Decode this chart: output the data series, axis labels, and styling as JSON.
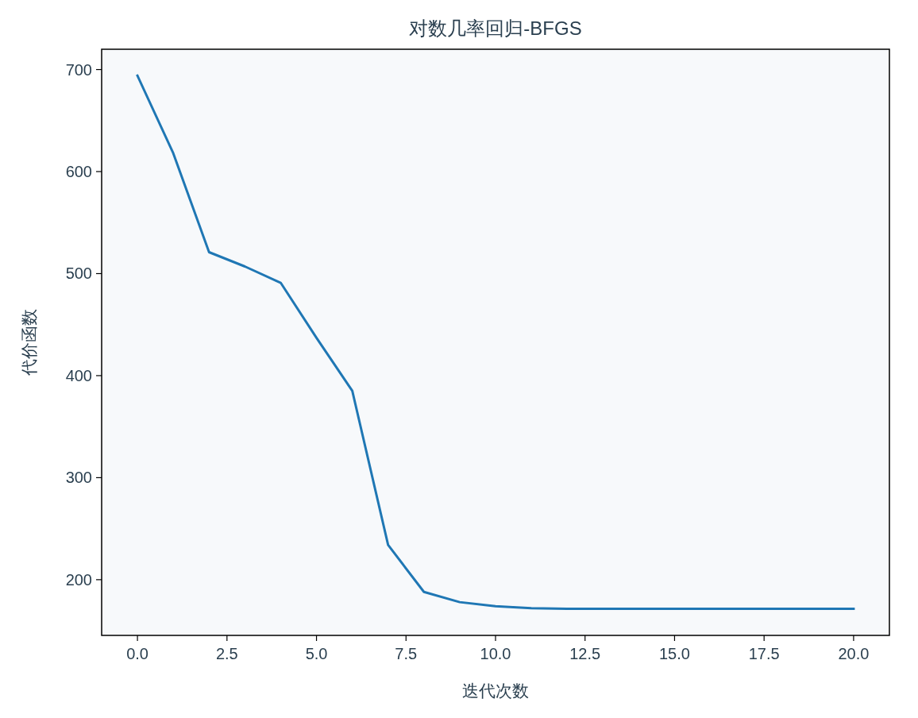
{
  "chart_data": {
    "type": "line",
    "title": "对数几率回归-BFGS",
    "xlabel": "迭代次数",
    "ylabel": "代价函数",
    "x": [
      0,
      1,
      2,
      3,
      4,
      5,
      6,
      7,
      8,
      9,
      10,
      11,
      12,
      13,
      14,
      15,
      16,
      17,
      18,
      19,
      20
    ],
    "series": [
      {
        "color": "#1f77b4",
        "values": [
          694,
          618,
          521,
          507,
          491,
          437,
          385,
          234,
          188,
          178,
          174,
          172,
          171.5,
          171.5,
          171.5,
          171.5,
          171.5,
          171.5,
          171.5,
          171.5,
          171.5
        ]
      }
    ],
    "xlim": [
      -1,
      21
    ],
    "ylim": [
      145.4,
      719.9
    ],
    "xticks": [
      {
        "value": 0,
        "label": "0.0"
      },
      {
        "value": 2.5,
        "label": "2.5"
      },
      {
        "value": 5,
        "label": "5.0"
      },
      {
        "value": 7.5,
        "label": "7.5"
      },
      {
        "value": 10,
        "label": "10.0"
      },
      {
        "value": 12.5,
        "label": "12.5"
      },
      {
        "value": 15,
        "label": "15.0"
      },
      {
        "value": 17.5,
        "label": "17.5"
      },
      {
        "value": 20,
        "label": "20.0"
      }
    ],
    "yticks": [
      200,
      300,
      400,
      500,
      600,
      700
    ],
    "grid": false
  }
}
